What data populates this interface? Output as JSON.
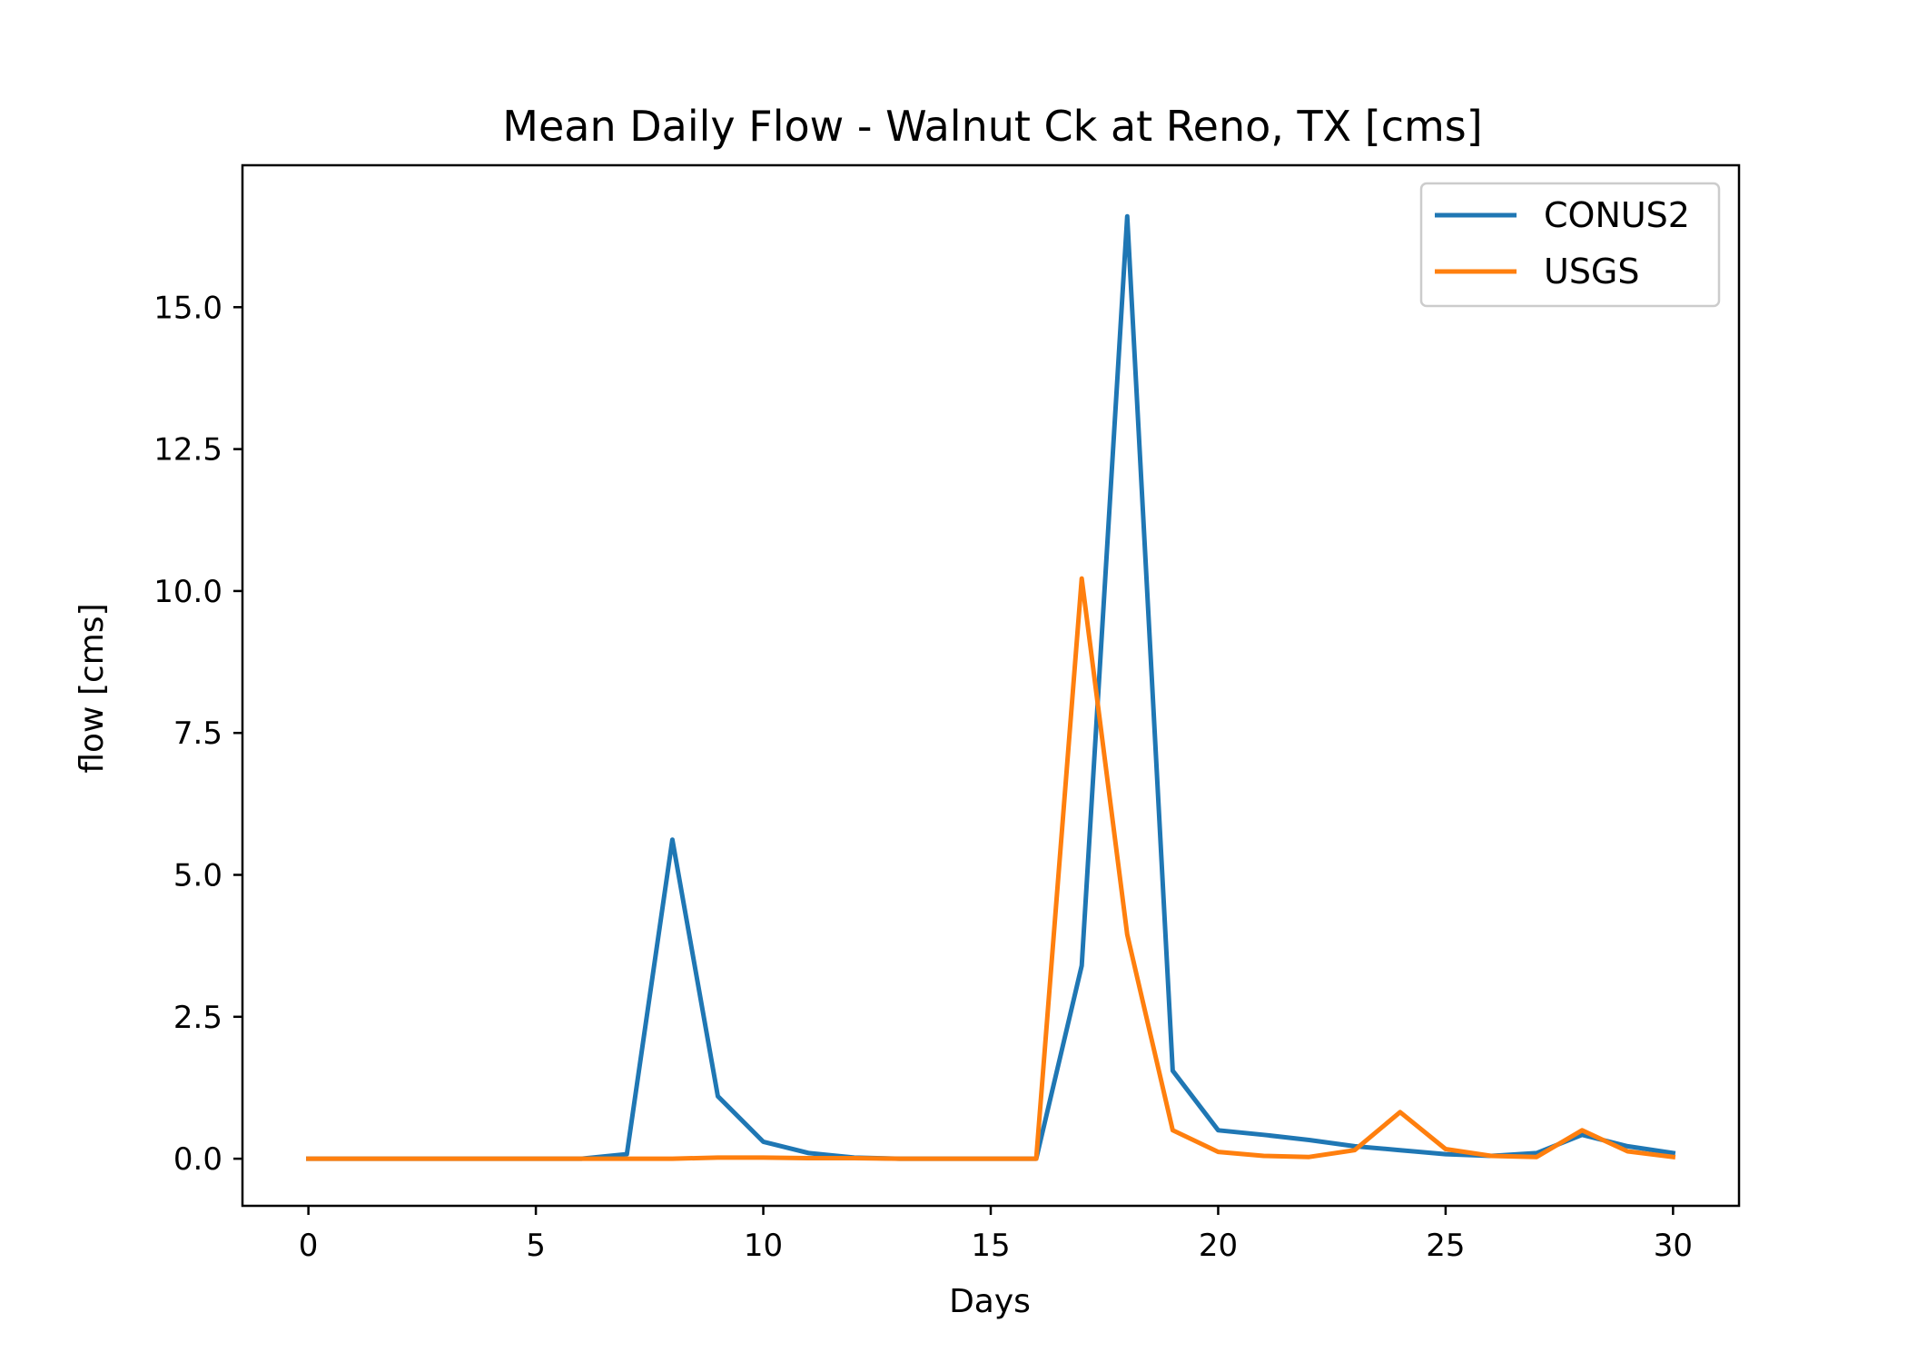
{
  "chart_data": {
    "type": "line",
    "title": "Mean Daily Flow - Walnut Ck at Reno, TX [cms]",
    "xlabel": "Days",
    "ylabel": "flow [cms]",
    "xlim": [
      -1.45,
      31.45
    ],
    "ylim": [
      -0.83,
      17.5
    ],
    "xticks": [
      0,
      5,
      10,
      15,
      20,
      25,
      30
    ],
    "xtick_labels": [
      "0",
      "5",
      "10",
      "15",
      "20",
      "25",
      "30"
    ],
    "yticks": [
      0,
      2.5,
      5,
      7.5,
      10,
      12.5,
      15
    ],
    "ytick_labels": [
      "0.0",
      "2.5",
      "5.0",
      "7.5",
      "10.0",
      "12.5",
      "15.0"
    ],
    "grid": false,
    "legend_position": "top-right",
    "x": [
      0,
      1,
      2,
      3,
      4,
      5,
      6,
      7,
      8,
      9,
      10,
      11,
      12,
      13,
      14,
      15,
      16,
      17,
      18,
      19,
      20,
      21,
      22,
      23,
      24,
      25,
      26,
      27,
      28,
      29,
      30
    ],
    "series": [
      {
        "name": "CONUS2",
        "color": "#1f77b4",
        "values": [
          0,
          0,
          0,
          0,
          0,
          0,
          0,
          0.08,
          5.62,
          1.1,
          0.3,
          0.1,
          0.02,
          0,
          0,
          0,
          0,
          3.4,
          16.6,
          1.55,
          0.5,
          0.42,
          0.33,
          0.22,
          0.15,
          0.08,
          0.05,
          0.1,
          0.42,
          0.22,
          0.1
        ]
      },
      {
        "name": "USGS",
        "color": "#ff7f0e",
        "values": [
          0,
          0,
          0,
          0,
          0,
          0,
          0,
          0,
          0,
          0.02,
          0.02,
          0.01,
          0.01,
          0,
          0,
          0,
          0,
          10.22,
          3.95,
          0.5,
          0.12,
          0.05,
          0.03,
          0.15,
          0.82,
          0.17,
          0.05,
          0.03,
          0.5,
          0.13,
          0.03
        ]
      }
    ]
  }
}
